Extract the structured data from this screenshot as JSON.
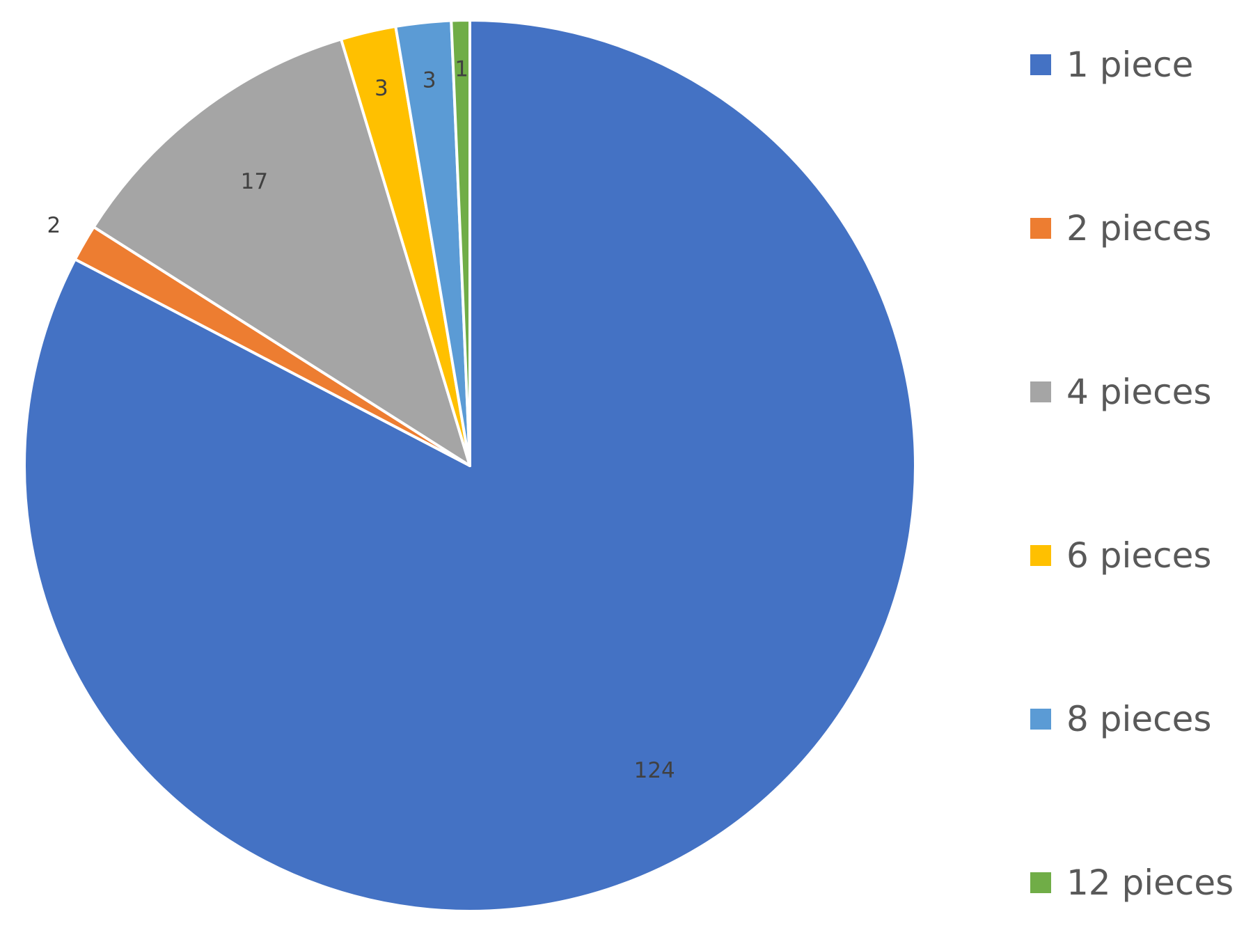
{
  "chart_data": {
    "type": "pie",
    "categories": [
      "1 piece",
      "2 pieces",
      "4 pieces",
      "6 pieces",
      "8 pieces",
      "12 pieces"
    ],
    "values": [
      124,
      2,
      17,
      3,
      3,
      1
    ],
    "colors": [
      "#4472C4",
      "#ED7D31",
      "#A5A5A5",
      "#FFC000",
      "#5B9BD5",
      "#70AD47"
    ],
    "data_labels": [
      "124",
      "2",
      "17",
      "3",
      "3",
      "1"
    ],
    "start_angle": "12 o'clock",
    "direction": "clockwise",
    "legend_position": "right",
    "title": ""
  }
}
